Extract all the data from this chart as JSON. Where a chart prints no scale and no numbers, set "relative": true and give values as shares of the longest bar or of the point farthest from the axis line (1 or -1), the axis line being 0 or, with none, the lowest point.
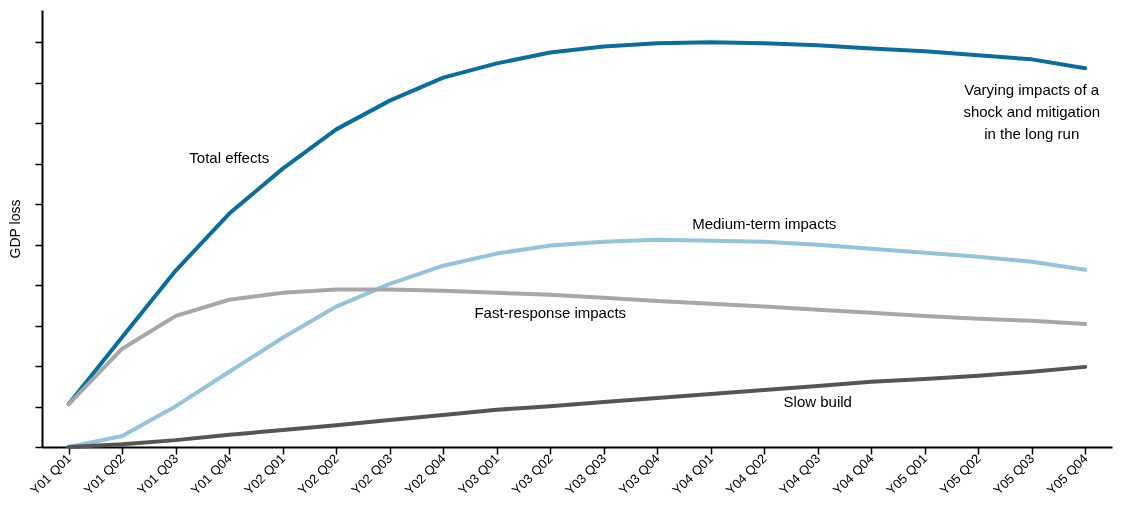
{
  "chart_data": {
    "type": "line",
    "relative": true,
    "ylabel": "GDP loss",
    "categories": [
      "Y01 Q01",
      "Y01 Q02",
      "Y01 Q03",
      "Y01 Q04",
      "Y02 Q01",
      "Y02 Q02",
      "Y02 Q03",
      "Y02 Q04",
      "Y03 Q01",
      "Y03 Q02",
      "Y03 Q03",
      "Y03 Q04",
      "Y04 Q01",
      "Y04 Q02",
      "Y04 Q03",
      "Y04 Q04",
      "Y05 Q01",
      "Y05 Q02",
      "Y05 Q03",
      "Y05 Q04"
    ],
    "series": [
      {
        "name": "Total effects",
        "color": "#0a6d9e",
        "values": [
          0.106,
          0.272,
          0.436,
          0.577,
          0.688,
          0.785,
          0.856,
          0.913,
          0.948,
          0.975,
          0.99,
          0.998,
          1,
          0.998,
          0.993,
          0.985,
          0.978,
          0.968,
          0.958,
          0.936
        ]
      },
      {
        "name": "Medium-term impacts",
        "color": "#93c4dc",
        "values": [
          0,
          0.027,
          0.101,
          0.186,
          0.27,
          0.347,
          0.403,
          0.448,
          0.478,
          0.498,
          0.507,
          0.512,
          0.51,
          0.507,
          0.5,
          0.49,
          0.48,
          0.47,
          0.458,
          0.438
        ]
      },
      {
        "name": "Fast-response impacts",
        "color": "#a7a7ab",
        "values": [
          0.106,
          0.243,
          0.324,
          0.364,
          0.381,
          0.389,
          0.389,
          0.386,
          0.381,
          0.376,
          0.369,
          0.361,
          0.354,
          0.347,
          0.339,
          0.332,
          0.324,
          0.317,
          0.312,
          0.304
        ]
      },
      {
        "name": "Slow build",
        "color": "#555555",
        "values": [
          0,
          0.007,
          0.017,
          0.03,
          0.042,
          0.054,
          0.067,
          0.079,
          0.092,
          0.101,
          0.111,
          0.121,
          0.131,
          0.141,
          0.151,
          0.161,
          0.168,
          0.176,
          0.186,
          0.198
        ]
      }
    ],
    "annotations": [
      "Varying impacts of a\nshock and mitigation\nin the long run"
    ],
    "grid": false,
    "legend": false,
    "marker": "none",
    "line_style": "solid"
  }
}
